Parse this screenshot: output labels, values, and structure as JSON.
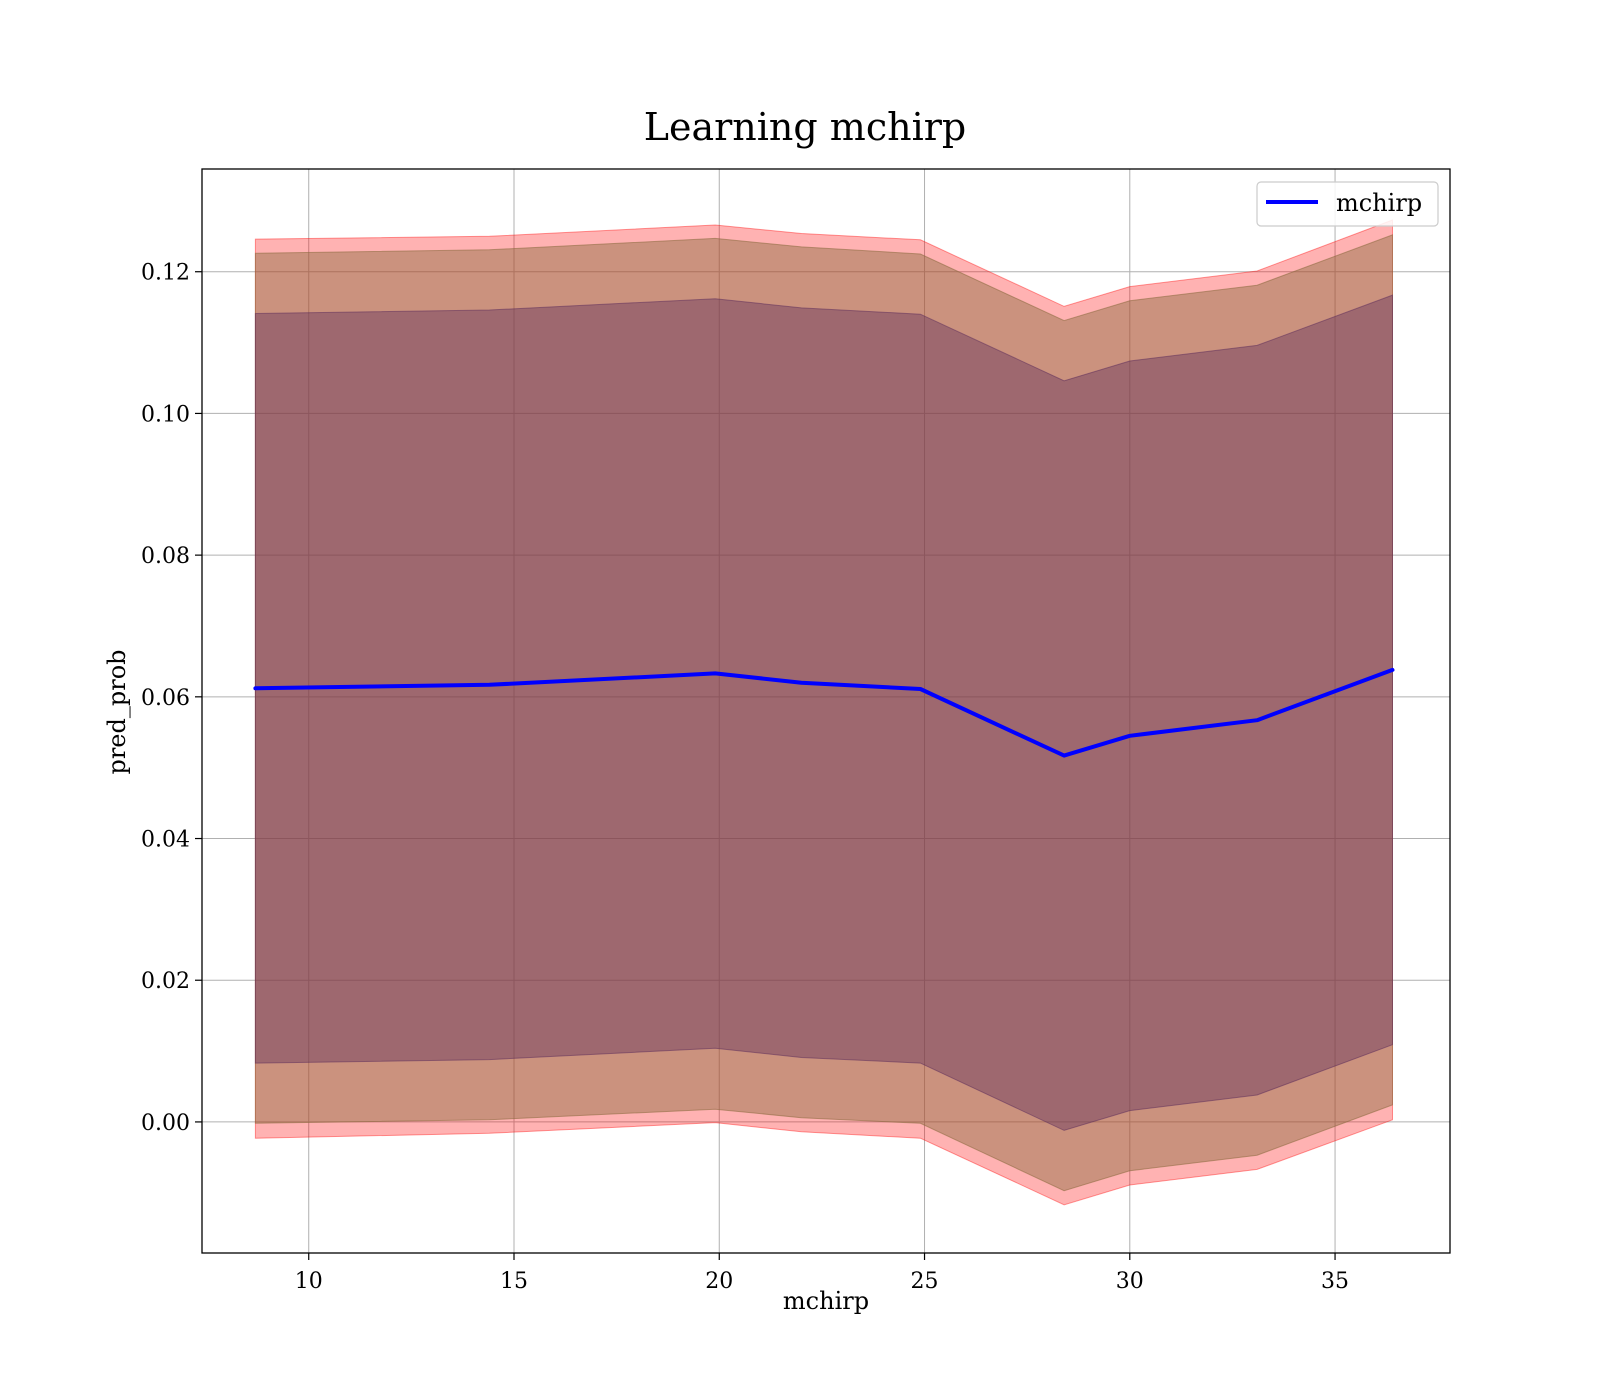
{
  "chart_data": {
    "type": "line",
    "title": "Learning mchirp",
    "xlabel": "mchirp",
    "ylabel": "pred_prob",
    "xlim": [
      7.4,
      37.8
    ],
    "ylim": [
      -0.0185,
      0.1345
    ],
    "xticks": [
      10,
      15,
      20,
      25,
      30,
      35
    ],
    "yticks": [
      0.0,
      0.02,
      0.04,
      0.06,
      0.08,
      0.1,
      0.12
    ],
    "ytick_labels": [
      "0.00",
      "0.02",
      "0.04",
      "0.06",
      "0.08",
      "0.10",
      "0.12"
    ],
    "grid": true,
    "legend": {
      "position": "top-right",
      "entries": [
        "mchirp"
      ]
    },
    "x": [
      8.7,
      14.4,
      19.9,
      22.0,
      24.9,
      28.4,
      30.0,
      33.1,
      36.4
    ],
    "series": [
      {
        "name": "mchirp",
        "color": "#0000ff",
        "values": [
          0.0612,
          0.0617,
          0.0633,
          0.062,
          0.0611,
          0.0517,
          0.0545,
          0.0567,
          0.0638
        ]
      }
    ],
    "bands": [
      {
        "color": "#ff0000",
        "opacity": 0.3,
        "lower": [
          -0.0023,
          -0.0016,
          -0.0001,
          -0.0014,
          -0.0023,
          -0.0117,
          -0.0089,
          -0.0067,
          0.0003
        ],
        "upper": [
          0.1246,
          0.125,
          0.1266,
          0.1254,
          0.1245,
          0.1151,
          0.1179,
          0.1201,
          0.1273
        ]
      },
      {
        "color": "#8b6a3e",
        "opacity": 0.45,
        "lower": [
          -0.0002,
          0.0003,
          0.0018,
          0.0006,
          -0.0002,
          -0.0097,
          -0.0069,
          -0.0047,
          0.0024
        ],
        "upper": [
          0.1226,
          0.1231,
          0.1247,
          0.1235,
          0.1225,
          0.1131,
          0.1159,
          0.1181,
          0.1252
        ]
      },
      {
        "color": "#5a2a5a",
        "opacity": 0.4,
        "lower": [
          0.0083,
          0.0088,
          0.0104,
          0.0091,
          0.0083,
          -0.0012,
          0.0016,
          0.0038,
          0.0109
        ],
        "upper": [
          0.1141,
          0.1146,
          0.1162,
          0.1149,
          0.114,
          0.1046,
          0.1074,
          0.1096,
          0.1167
        ]
      }
    ]
  }
}
